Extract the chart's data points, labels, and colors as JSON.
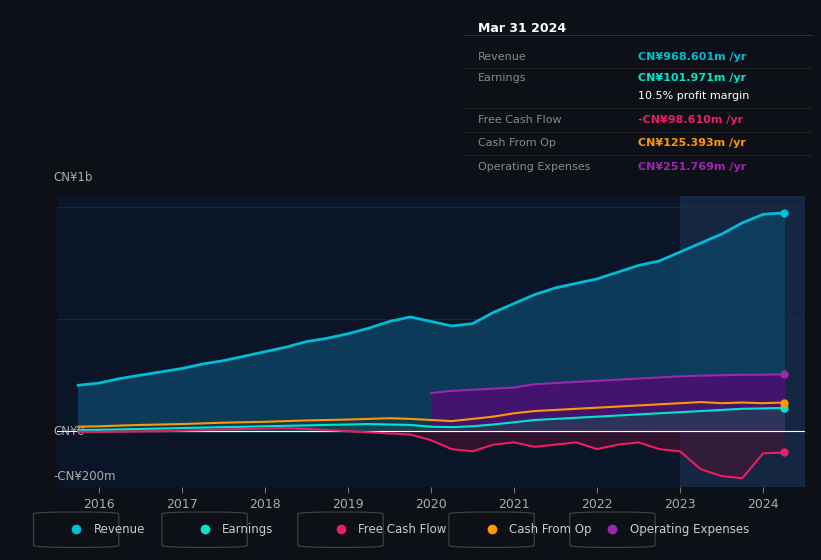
{
  "background_color": "#0d1117",
  "plot_bg": "#0a1628",
  "ylabel_top": "CN¥1b",
  "ylabel_mid": "CN¥0",
  "ylabel_bot": "-CN¥200m",
  "ylim": [
    -250,
    1050
  ],
  "years": [
    2015.75,
    2016.0,
    2016.25,
    2016.5,
    2016.75,
    2017.0,
    2017.25,
    2017.5,
    2017.75,
    2018.0,
    2018.25,
    2018.5,
    2018.75,
    2019.0,
    2019.25,
    2019.5,
    2019.75,
    2020.0,
    2020.25,
    2020.5,
    2020.75,
    2021.0,
    2021.25,
    2021.5,
    2021.75,
    2022.0,
    2022.25,
    2022.5,
    2022.75,
    2023.0,
    2023.25,
    2023.5,
    2023.75,
    2024.0,
    2024.25
  ],
  "revenue": [
    205,
    215,
    235,
    250,
    265,
    280,
    300,
    315,
    335,
    355,
    375,
    400,
    415,
    435,
    460,
    490,
    510,
    490,
    470,
    480,
    530,
    570,
    610,
    640,
    660,
    680,
    710,
    740,
    760,
    800,
    840,
    880,
    930,
    968,
    975
  ],
  "earnings": [
    5,
    6,
    8,
    10,
    12,
    14,
    16,
    18,
    20,
    22,
    24,
    26,
    28,
    30,
    32,
    30,
    28,
    20,
    18,
    22,
    30,
    40,
    50,
    55,
    60,
    65,
    70,
    75,
    80,
    85,
    90,
    95,
    100,
    102,
    104
  ],
  "free_cash_flow": [
    -2,
    -3,
    -2,
    -1,
    0,
    2,
    5,
    8,
    10,
    12,
    15,
    10,
    5,
    0,
    -5,
    -10,
    -15,
    -40,
    -80,
    -90,
    -60,
    -50,
    -70,
    -60,
    -50,
    -80,
    -60,
    -50,
    -80,
    -90,
    -170,
    -200,
    -210,
    -99,
    -95
  ],
  "cash_from_op": [
    20,
    22,
    25,
    28,
    30,
    32,
    35,
    38,
    40,
    42,
    45,
    48,
    50,
    52,
    55,
    58,
    55,
    50,
    45,
    55,
    65,
    80,
    90,
    95,
    100,
    105,
    110,
    115,
    120,
    125,
    130,
    125,
    128,
    125,
    128
  ],
  "operating_expenses": [
    0,
    0,
    0,
    0,
    0,
    0,
    0,
    0,
    0,
    0,
    0,
    0,
    0,
    0,
    0,
    0,
    0,
    170,
    180,
    185,
    190,
    195,
    210,
    215,
    220,
    225,
    230,
    235,
    240,
    245,
    248,
    250,
    252,
    252,
    254
  ],
  "revenue_color": "#00bcd4",
  "earnings_color": "#00e5cc",
  "fcf_color": "#e91e63",
  "cashop_color": "#ff9800",
  "opex_color": "#9c27b0",
  "revenue_fill": "#0d4060",
  "opex_fill": "#4a1070",
  "highlight_start": 2023.0,
  "highlight_end": 2024.5,
  "grid_color": "#1e3050",
  "legend_items": [
    "Revenue",
    "Earnings",
    "Free Cash Flow",
    "Cash From Op",
    "Operating Expenses"
  ],
  "legend_colors": [
    "#00bcd4",
    "#00e5cc",
    "#e91e63",
    "#ff9800",
    "#9c27b0"
  ],
  "info_box": {
    "date": "Mar 31 2024",
    "rows": [
      {
        "label": "Revenue",
        "value": "CN¥968.601m /yr",
        "color": "#00bcd4"
      },
      {
        "label": "Earnings",
        "value": "CN¥101.971m /yr",
        "color": "#00e5cc"
      },
      {
        "label": "",
        "value": "10.5% profit margin",
        "color": "#ffffff"
      },
      {
        "label": "Free Cash Flow",
        "value": "-CN¥98.610m /yr",
        "color": "#e91e63"
      },
      {
        "label": "Cash From Op",
        "value": "CN¥125.393m /yr",
        "color": "#ff9800"
      },
      {
        "label": "Operating Expenses",
        "value": "CN¥251.769m /yr",
        "color": "#9c27b0"
      }
    ]
  },
  "xticks": [
    2016,
    2017,
    2018,
    2019,
    2020,
    2021,
    2022,
    2023,
    2024
  ],
  "xlim": [
    2015.5,
    2024.5
  ]
}
